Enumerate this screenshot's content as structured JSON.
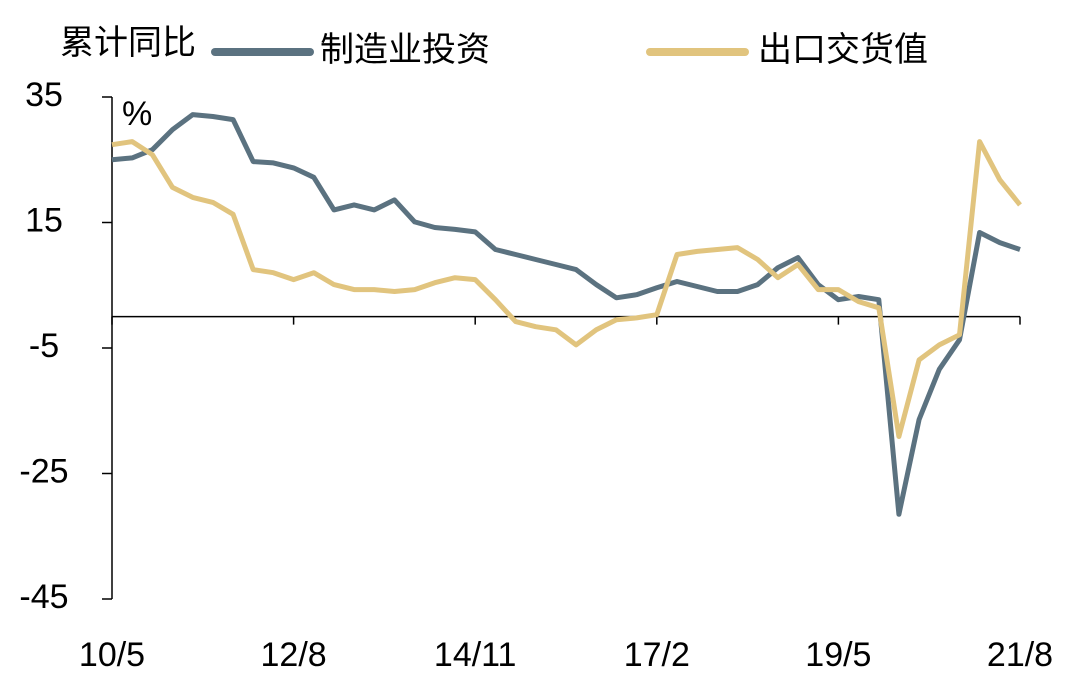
{
  "chart_data": {
    "type": "line",
    "title": "累计同比",
    "unit": "%",
    "categories": [
      "10/5",
      null,
      null,
      null,
      null,
      null,
      null,
      null,
      null,
      "12/8",
      null,
      null,
      null,
      null,
      null,
      null,
      null,
      null,
      "14/11",
      null,
      null,
      null,
      null,
      null,
      null,
      null,
      null,
      "17/2",
      null,
      null,
      null,
      null,
      null,
      null,
      null,
      null,
      "19/5",
      null,
      null,
      null,
      null,
      null,
      null,
      null,
      null,
      "21/8"
    ],
    "series": [
      {
        "name": "制造业投资",
        "color": "#5b7280",
        "values": [
          25,
          25.3,
          26.6,
          29.8,
          32.2,
          31.9,
          31.4,
          24.7,
          24.5,
          23.7,
          22.2,
          17,
          17.8,
          17,
          18.6,
          15.1,
          14.2,
          13.9,
          13.5,
          10.7,
          9.9,
          9.1,
          8.3,
          7.5,
          5.1,
          3.0,
          3.5,
          4.6,
          5.6,
          4.8,
          4.0,
          4.0,
          5.1,
          7.8,
          9.4,
          5.1,
          2.7,
          3.2,
          2.7,
          -31.5,
          -16.4,
          -8.4,
          -3.7,
          13.4,
          11.8,
          10.7
        ]
      },
      {
        "name": "出口交货值",
        "color": "#e1c47e",
        "values": [
          27.4,
          27.9,
          25.8,
          20.6,
          19,
          18.2,
          16.3,
          7.5,
          7,
          5.9,
          7,
          5.1,
          4.3,
          4.3,
          4,
          4.3,
          5.4,
          6.2,
          5.9,
          2.7,
          -0.8,
          -1.6,
          -2.1,
          -4.5,
          -2.1,
          -0.5,
          -0.2,
          0.3,
          9.9,
          10.4,
          10.7,
          11,
          9.1,
          6.2,
          8.3,
          4.3,
          4.3,
          2.4,
          1.4,
          -19.1,
          -6.9,
          -4.5,
          -2.9,
          27.9,
          21.8,
          17.8
        ]
      }
    ],
    "ylim": [
      -45,
      35
    ],
    "yticks": [
      35,
      15,
      -5,
      -25,
      -45
    ],
    "grid": false
  }
}
